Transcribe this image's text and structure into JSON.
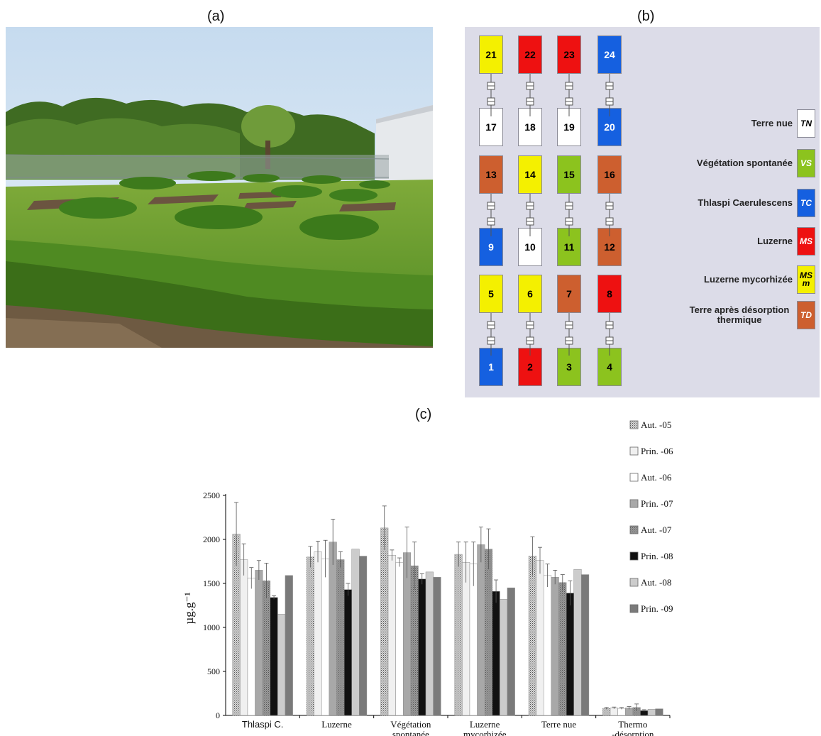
{
  "labels": {
    "a": "(a)",
    "b": "(b)",
    "c": "(c)"
  },
  "photo": {
    "description_icon": "field-plots-photo"
  },
  "plan": {
    "colors": {
      "TN": "#ffffff",
      "VS": "#8cc31e",
      "TC": "#1560e0",
      "MS": "#ee1111",
      "MSm": "#f4f000",
      "TD": "#cd5f2f"
    },
    "columns": [
      [
        {
          "n": "21",
          "t": "MSm"
        },
        {
          "n": "17",
          "t": "TN"
        },
        {
          "n": "13",
          "t": "TD"
        },
        {
          "n": "9",
          "t": "TC"
        },
        {
          "n": "5",
          "t": "MSm"
        },
        {
          "n": "1",
          "t": "TC"
        }
      ],
      [
        {
          "n": "22",
          "t": "MS"
        },
        {
          "n": "18",
          "t": "TN"
        },
        {
          "n": "14",
          "t": "MSm"
        },
        {
          "n": "10",
          "t": "TN"
        },
        {
          "n": "6",
          "t": "MSm"
        },
        {
          "n": "2",
          "t": "MS"
        }
      ],
      [
        {
          "n": "23",
          "t": "MS"
        },
        {
          "n": "19",
          "t": "TN"
        },
        {
          "n": "15",
          "t": "VS"
        },
        {
          "n": "11",
          "t": "VS"
        },
        {
          "n": "7",
          "t": "TD"
        },
        {
          "n": "3",
          "t": "VS"
        }
      ],
      [
        {
          "n": "24",
          "t": "TC"
        },
        {
          "n": "20",
          "t": "TC"
        },
        {
          "n": "16",
          "t": "TD"
        },
        {
          "n": "12",
          "t": "TD"
        },
        {
          "n": "8",
          "t": "MS"
        },
        {
          "n": "4",
          "t": "VS"
        }
      ]
    ],
    "legend": [
      {
        "label": "Terre nue",
        "code": "TN",
        "t": "TN"
      },
      {
        "label": "Végétation spontanée",
        "code": "VS",
        "t": "VS"
      },
      {
        "label": "Thlaspi Caerulescens",
        "code": "TC",
        "t": "TC"
      },
      {
        "label": "Luzerne",
        "code": "MS",
        "t": "MS"
      },
      {
        "label": "Luzerne mycorhizée",
        "code": "MS m",
        "t": "MSm"
      },
      {
        "label": "Terre après désorption thermique",
        "code": "TD",
        "t": "TD"
      }
    ]
  },
  "chart_data": {
    "type": "bar",
    "ylabel": "µg.g⁻¹",
    "ylim": [
      0,
      2500
    ],
    "yticks": [
      0,
      500,
      1000,
      1500,
      2000,
      2500
    ],
    "categories": [
      "Thlaspi C.",
      "Luzerne",
      "Végétation spontanée",
      "Luzerne mycorhizée",
      "Terre nue",
      "Thermo -désorption"
    ],
    "legend_position": "right",
    "series": [
      {
        "name": "Aut. -05",
        "fill": "#d4d4d4",
        "pattern": "dots",
        "values": [
          2060,
          1800,
          2130,
          1830,
          1810,
          80
        ],
        "errors": [
          360,
          120,
          250,
          140,
          220,
          10
        ]
      },
      {
        "name": "Prin. -06",
        "fill": "#f0f0f0",
        "pattern": "none",
        "values": [
          1770,
          1860,
          1820,
          1740,
          1760,
          85
        ],
        "errors": [
          180,
          120,
          60,
          230,
          150,
          10
        ]
      },
      {
        "name": "Aut. -06",
        "fill": "#ffffff",
        "pattern": "none",
        "values": [
          1560,
          1780,
          1740,
          1720,
          1590,
          80
        ],
        "errors": [
          120,
          210,
          50,
          250,
          130,
          10
        ]
      },
      {
        "name": "Prin. -07",
        "fill": "#a8a8a8",
        "pattern": "none",
        "values": [
          1650,
          1970,
          1850,
          1940,
          1570,
          85
        ],
        "errors": [
          110,
          260,
          290,
          200,
          80,
          15
        ]
      },
      {
        "name": "Aut. -07",
        "fill": "#9a9a9a",
        "pattern": "dots",
        "values": [
          1530,
          1770,
          1700,
          1890,
          1510,
          90
        ],
        "errors": [
          200,
          90,
          270,
          230,
          90,
          40
        ]
      },
      {
        "name": "Prin. -08",
        "fill": "#111111",
        "pattern": "none",
        "values": [
          1340,
          1430,
          1550,
          1410,
          1390,
          55
        ],
        "errors": [
          20,
          70,
          60,
          130,
          140,
          10
        ]
      },
      {
        "name": "Aut. -08",
        "fill": "#cccccc",
        "pattern": "none",
        "values": [
          1150,
          1890,
          1630,
          1320,
          1660,
          70
        ],
        "errors": [
          0,
          0,
          0,
          0,
          0,
          0
        ]
      },
      {
        "name": "Prin. -09",
        "fill": "#7a7a7a",
        "pattern": "none",
        "values": [
          1590,
          1810,
          1570,
          1450,
          1600,
          75
        ],
        "errors": [
          0,
          0,
          0,
          0,
          0,
          0
        ]
      }
    ]
  }
}
